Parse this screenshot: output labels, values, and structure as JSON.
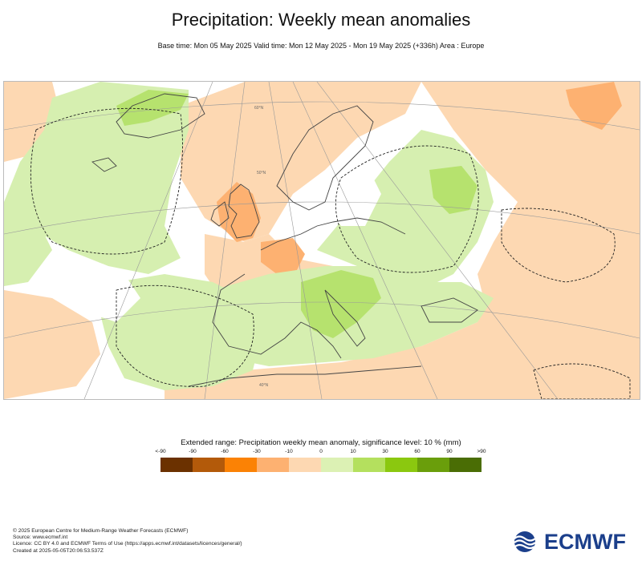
{
  "header": {
    "title": "Precipitation: Weekly mean anomalies",
    "subtitle": "Base time: Mon 05 May 2025 Valid time: Mon 12 May 2025 - Mon 19 May 2025 (+336h) Area : Europe"
  },
  "legend": {
    "title": "Extended range: Precipitation weekly mean anomaly, significance level: 10 % (mm)",
    "ticks": [
      "<-90",
      "-90",
      "-60",
      "-30",
      "-10",
      "0",
      "10",
      "30",
      "60",
      "90",
      ">90"
    ],
    "colors": [
      "#6b3100",
      "#b35a0a",
      "#fb8205",
      "#fdb171",
      "#fdd8b2",
      "#dcf1b4",
      "#b4e05e",
      "#8bc80f",
      "#6a9e0b",
      "#4a6d05"
    ]
  },
  "map": {
    "colors": {
      "land_wet": "#d6efb0",
      "land_wetter": "#b6e26e",
      "dry_light": "#fdd8b2",
      "dry": "#fdb171",
      "coast": "#444444",
      "grid": "#999999"
    },
    "graticule_labels": [
      "60°N",
      "50°N",
      "40°N"
    ]
  },
  "footer": {
    "line1": "© 2025 European Centre for Medium-Range Weather Forecasts (ECMWF)",
    "line2": "Source: www.ecmwf.int",
    "line3": "Licence: CC BY 4.0 and ECMWF Terms of Use (https://apps.ecmwf.int/datasets/licences/general/)",
    "line4": "Created at 2025-05-05T20:06:53.537Z"
  },
  "logo": {
    "text": "ECMWF",
    "icon": "ecmwf-wave-icon"
  }
}
